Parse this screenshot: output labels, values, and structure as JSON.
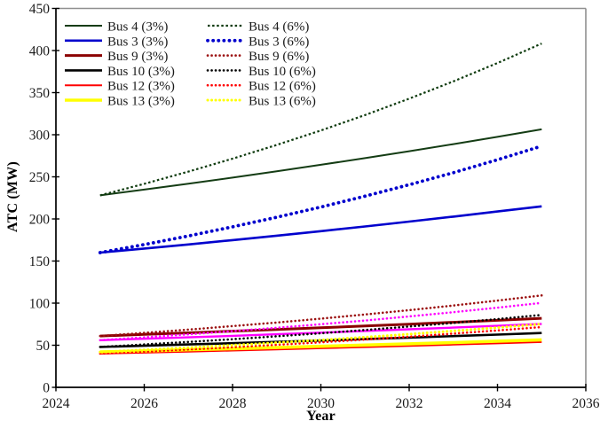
{
  "figure": {
    "background": "#ffffff",
    "plot_border_gray": "#8f8f8f",
    "axis_color": "#000000",
    "text_color": "#1a1a1a"
  },
  "chart_data": {
    "type": "line",
    "title": "",
    "xlabel": "Year",
    "ylabel": "ATC (MW)",
    "xlim": [
      2024,
      2036
    ],
    "ylim": [
      0,
      450
    ],
    "x_ticks": [
      "2024",
      "2026",
      "2028",
      "2030",
      "2032",
      "2034",
      "2036"
    ],
    "x_tick_values": [
      2024,
      2026,
      2028,
      2030,
      2032,
      2034,
      2036
    ],
    "y_ticks": [
      "0",
      "50",
      "100",
      "150",
      "200",
      "250",
      "300",
      "350",
      "400",
      "450"
    ],
    "y_tick_values": [
      0,
      50,
      100,
      150,
      200,
      250,
      300,
      350,
      400,
      450
    ],
    "grid": false,
    "legend_position": "top-left, two columns (solid 3% column, dotted 6% column)",
    "years": [
      2025,
      2026,
      2027,
      2028,
      2029,
      2030,
      2031,
      2032,
      2033,
      2034,
      2035
    ],
    "series": [
      {
        "name": "Bus 4 (3%)",
        "color": "#143c14",
        "style": "solid",
        "width": 2,
        "in_legend": true,
        "values": [
          228.0,
          234.8,
          241.9,
          249.1,
          256.6,
          264.3,
          272.2,
          280.4,
          288.8,
          297.5,
          306.4
        ]
      },
      {
        "name": "Bus 3 (3%)",
        "color": "#0000cd",
        "style": "solid",
        "width": 2.6,
        "in_legend": true,
        "values": [
          160.0,
          164.8,
          169.7,
          174.8,
          180.1,
          185.5,
          191.1,
          196.8,
          202.7,
          208.8,
          215.0
        ]
      },
      {
        "name": "Bus 9 (3%)",
        "color": "#8b0000",
        "style": "solid",
        "width": 3,
        "in_legend": true,
        "values": [
          61.0,
          62.8,
          64.7,
          66.7,
          68.7,
          70.7,
          72.8,
          75.0,
          77.3,
          79.6,
          82.0
        ]
      },
      {
        "name": "Bus 10 (3%)",
        "color": "#000000",
        "style": "solid",
        "width": 2.6,
        "in_legend": true,
        "values": [
          48.0,
          49.4,
          50.9,
          52.4,
          54.0,
          55.6,
          57.3,
          59.0,
          60.8,
          62.6,
          64.5
        ]
      },
      {
        "name": "Bus 12 (3%)",
        "color": "#ff0000",
        "style": "solid",
        "width": 2,
        "in_legend": true,
        "values": [
          40.0,
          41.2,
          42.4,
          43.7,
          45.0,
          46.4,
          47.8,
          49.2,
          50.7,
          52.2,
          53.8
        ]
      },
      {
        "name": "Bus 13 (3%)",
        "color": "#ffff00",
        "style": "solid",
        "width": 3.6,
        "in_legend": true,
        "values": [
          42.0,
          43.3,
          44.6,
          45.9,
          47.3,
          48.7,
          50.2,
          51.7,
          53.2,
          54.8,
          56.4
        ]
      },
      {
        "name": "Unlabeled magenta (solid)",
        "color": "#ff00ff",
        "style": "solid",
        "width": 2.4,
        "in_legend": false,
        "values": [
          56.0,
          57.7,
          59.4,
          61.2,
          63.0,
          64.9,
          66.9,
          68.9,
          70.9,
          73.1,
          75.3
        ]
      },
      {
        "name": "Bus 4 (6%)",
        "color": "#0d3a0d",
        "style": "dash-dense",
        "width": 2.2,
        "in_legend": true,
        "values": [
          228.0,
          241.7,
          256.2,
          271.6,
          287.9,
          305.1,
          323.4,
          342.8,
          363.4,
          385.2,
          408.3
        ]
      },
      {
        "name": "Bus 3 (6%)",
        "color": "#0000cd",
        "style": "dot-large",
        "width": 3.8,
        "in_legend": true,
        "values": [
          160.0,
          169.6,
          179.8,
          190.6,
          202.0,
          214.1,
          227.0,
          240.6,
          255.0,
          270.3,
          286.5
        ]
      },
      {
        "name": "Bus 9 (6%)",
        "color": "#9b1010",
        "style": "dot",
        "width": 2.6,
        "in_legend": true,
        "values": [
          61.0,
          64.7,
          68.5,
          72.7,
          77.0,
          81.6,
          86.5,
          91.7,
          97.2,
          103.1,
          109.2
        ]
      },
      {
        "name": "Bus 10 (6%)",
        "color": "#000000",
        "style": "dot",
        "width": 2.6,
        "in_legend": true,
        "values": [
          48.0,
          50.9,
          53.9,
          57.2,
          60.6,
          64.2,
          68.1,
          72.2,
          76.5,
          81.1,
          86.0
        ]
      },
      {
        "name": "Bus 12 (6%)",
        "color": "#ff0000",
        "style": "dot",
        "width": 2.6,
        "in_legend": true,
        "values": [
          40.0,
          42.4,
          44.9,
          47.6,
          50.5,
          53.5,
          56.7,
          60.1,
          63.8,
          67.6,
          71.6
        ]
      },
      {
        "name": "Bus 13 (6%)",
        "color": "#ffff00",
        "style": "dot",
        "width": 3,
        "in_legend": true,
        "values": [
          42.0,
          44.5,
          47.2,
          50.0,
          53.0,
          56.2,
          59.6,
          63.2,
          66.9,
          71.0,
          75.2
        ]
      },
      {
        "name": "Unlabeled magenta (dotted)",
        "color": "#ff00ff",
        "style": "dot",
        "width": 2.6,
        "in_legend": false,
        "values": [
          56.0,
          59.4,
          62.9,
          66.7,
          70.7,
          74.9,
          79.4,
          84.2,
          89.3,
          94.6,
          100.3
        ]
      }
    ],
    "legend": {
      "column1_labels": [
        "Bus 4 (3%)",
        "Bus 3 (3%)",
        "Bus 9 (3%)",
        "Bus 10 (3%)",
        "Bus 12 (3%)",
        "Bus 13 (3%)"
      ],
      "column2_labels": [
        "Bus 4 (6%)",
        "Bus 3 (6%)",
        "Bus 9 (6%)",
        "Bus 10 (6%)",
        "Bus 12 (6%)",
        "Bus 13 (6%)"
      ]
    }
  }
}
